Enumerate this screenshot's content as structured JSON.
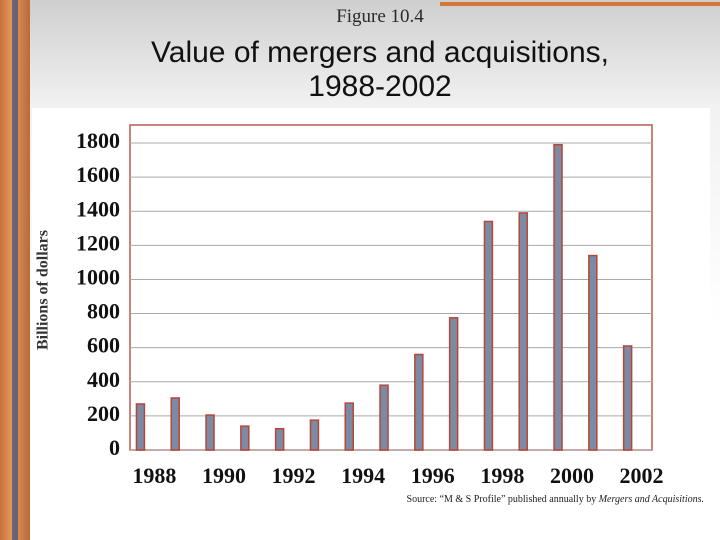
{
  "chart_data": {
    "type": "bar",
    "figure": "Figure 10.4",
    "title": "Value of mergers and acquisitions, 1988-2002",
    "y_label": "Billions of dollars",
    "source": "Source: “M & S Profile” published annually by",
    "source_publication": "Mergers and Acquisitions.",
    "categories": [
      "1988",
      null,
      "1990",
      null,
      "1992",
      null,
      "1994",
      null,
      "1996",
      null,
      "1998",
      null,
      "2000",
      null,
      "2002"
    ],
    "values": [
      270,
      305,
      205,
      140,
      125,
      175,
      275,
      380,
      560,
      775,
      1340,
      1390,
      1790,
      1140,
      610
    ],
    "color": "#7d8aa3",
    "edge_color": "#b5473a",
    "ylim": [
      0,
      1800
    ],
    "yticks": [
      0,
      200,
      400,
      600,
      800,
      1000,
      1200,
      1400,
      1600,
      1800
    ],
    "grid": true
  }
}
